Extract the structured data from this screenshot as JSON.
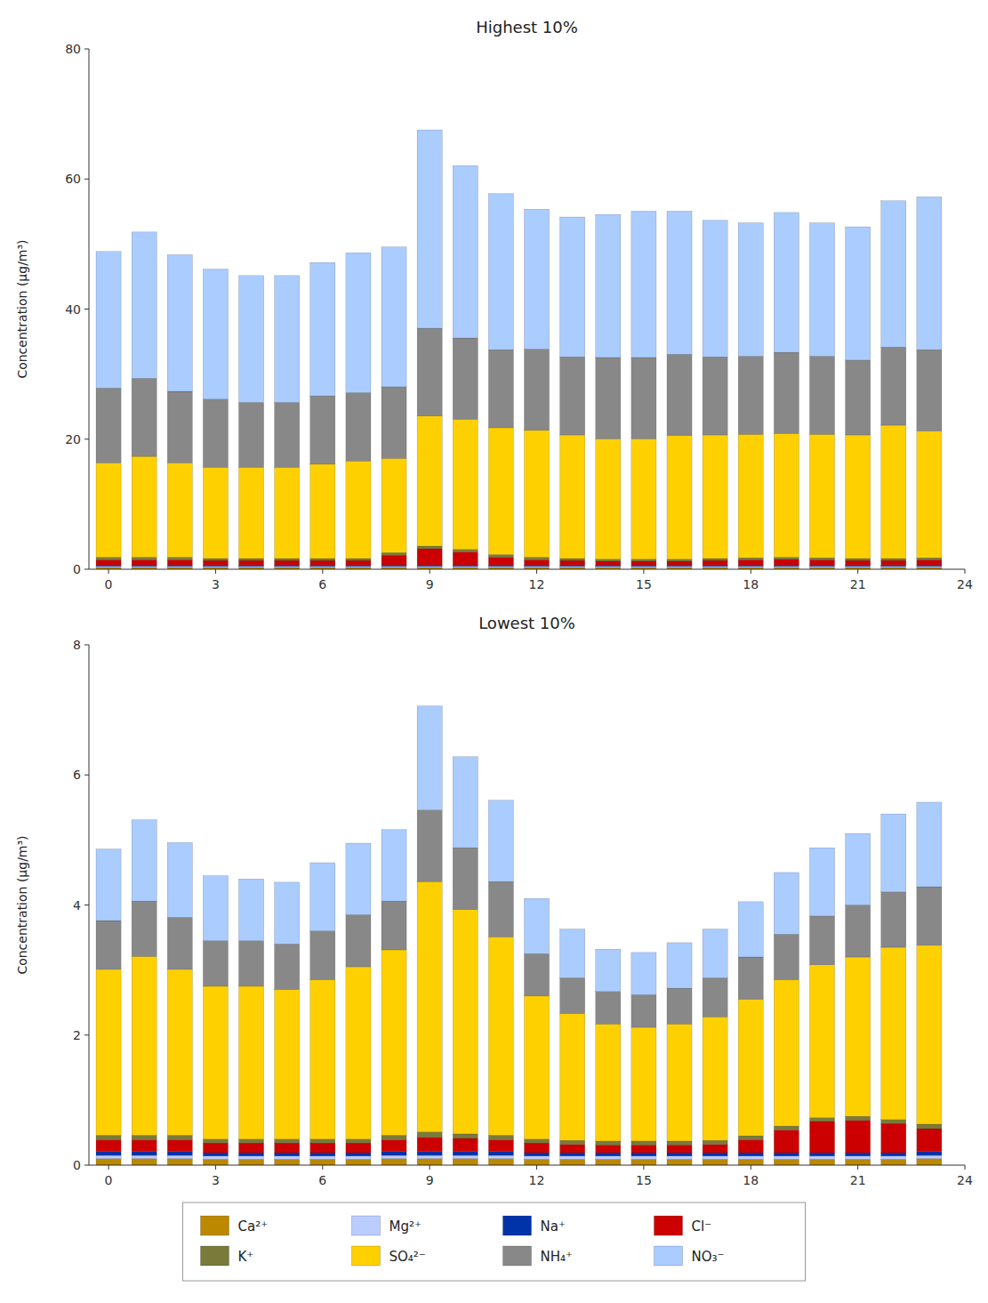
{
  "chart_data": [
    {
      "type": "bar",
      "stacked": true,
      "grid": false,
      "legend": "bottom",
      "title": "Highest 10%",
      "ylabel": "Concentration (μg/m³)",
      "x": [
        0,
        1,
        2,
        3,
        4,
        5,
        6,
        7,
        8,
        9,
        10,
        11,
        12,
        13,
        14,
        15,
        16,
        17,
        18,
        19,
        20,
        21,
        22,
        23
      ],
      "xlim": [
        -0.55,
        24
      ],
      "xticks": [
        0,
        3,
        6,
        9,
        12,
        15,
        18,
        21,
        24
      ],
      "ylim": [
        0,
        80
      ],
      "yticks": [
        0,
        20,
        40,
        60,
        80
      ],
      "series": [
        {
          "name": "Ca²⁺",
          "color": "#BB8800",
          "values": [
            0.3,
            0.3,
            0.3,
            0.3,
            0.3,
            0.3,
            0.3,
            0.3,
            0.3,
            0.3,
            0.3,
            0.3,
            0.3,
            0.3,
            0.3,
            0.3,
            0.3,
            0.3,
            0.3,
            0.3,
            0.3,
            0.3,
            0.3,
            0.3
          ]
        },
        {
          "name": "Mg²⁺",
          "color": "#BBCCFF",
          "values": [
            0.15,
            0.15,
            0.15,
            0.15,
            0.15,
            0.15,
            0.15,
            0.15,
            0.15,
            0.15,
            0.15,
            0.15,
            0.15,
            0.15,
            0.15,
            0.15,
            0.15,
            0.15,
            0.15,
            0.15,
            0.15,
            0.15,
            0.15,
            0.15
          ]
        },
        {
          "name": "Na⁺",
          "color": "#0033AA",
          "values": [
            0.2,
            0.2,
            0.2,
            0.2,
            0.2,
            0.2,
            0.2,
            0.2,
            0.2,
            0.2,
            0.2,
            0.2,
            0.2,
            0.2,
            0.2,
            0.2,
            0.2,
            0.2,
            0.2,
            0.2,
            0.2,
            0.2,
            0.2,
            0.2
          ]
        },
        {
          "name": "Cl⁻",
          "color": "#CC0000",
          "values": [
            0.8,
            0.8,
            0.8,
            0.7,
            0.7,
            0.7,
            0.7,
            0.7,
            1.5,
            2.5,
            2.0,
            1.2,
            0.8,
            0.7,
            0.6,
            0.6,
            0.6,
            0.7,
            0.8,
            0.9,
            0.8,
            0.7,
            0.7,
            0.8
          ]
        },
        {
          "name": "K⁺",
          "color": "#7A7A3A",
          "values": [
            0.4,
            0.4,
            0.4,
            0.3,
            0.3,
            0.3,
            0.3,
            0.3,
            0.4,
            0.4,
            0.4,
            0.4,
            0.4,
            0.3,
            0.3,
            0.3,
            0.3,
            0.3,
            0.3,
            0.3,
            0.3,
            0.3,
            0.3,
            0.3
          ]
        },
        {
          "name": "SO₄²⁻",
          "color": "#FFD000",
          "values": [
            14.5,
            15.5,
            14.5,
            14.0,
            14.0,
            14.0,
            14.5,
            15.0,
            14.5,
            20.0,
            20.0,
            19.5,
            19.5,
            19.0,
            18.5,
            18.5,
            19.0,
            19.0,
            19.0,
            19.0,
            19.0,
            19.0,
            20.5,
            19.5
          ]
        },
        {
          "name": "NH₄⁺",
          "color": "#888888",
          "values": [
            11.5,
            12.0,
            11.0,
            10.5,
            10.0,
            10.0,
            10.5,
            10.5,
            11.0,
            13.5,
            12.5,
            12.0,
            12.5,
            12.0,
            12.5,
            12.5,
            12.5,
            12.0,
            12.0,
            12.5,
            12.0,
            11.5,
            12.0,
            12.5
          ]
        },
        {
          "name": "NO₃⁻",
          "color": "#AACCFF",
          "values": [
            21.0,
            22.5,
            21.0,
            20.0,
            19.5,
            19.5,
            20.5,
            21.5,
            21.5,
            30.5,
            26.5,
            24.0,
            21.5,
            21.5,
            22.0,
            22.5,
            22.0,
            21.0,
            20.5,
            21.5,
            20.5,
            20.5,
            22.5,
            23.5
          ]
        }
      ]
    },
    {
      "type": "bar",
      "stacked": true,
      "grid": false,
      "title": "Lowest 10%",
      "ylabel": "Concentration (μg/m³)",
      "x": [
        0,
        1,
        2,
        3,
        4,
        5,
        6,
        7,
        8,
        9,
        10,
        11,
        12,
        13,
        14,
        15,
        16,
        17,
        18,
        19,
        20,
        21,
        22,
        23
      ],
      "xlim": [
        -0.55,
        24
      ],
      "xticks": [
        0,
        3,
        6,
        9,
        12,
        15,
        18,
        21,
        24
      ],
      "ylim": [
        0,
        8
      ],
      "yticks": [
        0,
        2,
        4,
        6,
        8
      ],
      "series": [
        {
          "name": "Ca²⁺",
          "color": "#BB8800",
          "values": [
            0.1,
            0.1,
            0.1,
            0.09,
            0.09,
            0.09,
            0.09,
            0.09,
            0.1,
            0.1,
            0.1,
            0.1,
            0.09,
            0.09,
            0.09,
            0.09,
            0.09,
            0.09,
            0.09,
            0.09,
            0.09,
            0.09,
            0.09,
            0.1
          ]
        },
        {
          "name": "Mg²⁺",
          "color": "#BBCCFF",
          "values": [
            0.05,
            0.05,
            0.05,
            0.05,
            0.05,
            0.05,
            0.05,
            0.05,
            0.05,
            0.05,
            0.05,
            0.05,
            0.05,
            0.05,
            0.05,
            0.05,
            0.05,
            0.05,
            0.05,
            0.05,
            0.05,
            0.05,
            0.05,
            0.05
          ]
        },
        {
          "name": "Na⁺",
          "color": "#0033AA",
          "values": [
            0.06,
            0.06,
            0.06,
            0.05,
            0.05,
            0.05,
            0.05,
            0.05,
            0.06,
            0.06,
            0.06,
            0.06,
            0.05,
            0.05,
            0.05,
            0.05,
            0.05,
            0.05,
            0.05,
            0.05,
            0.05,
            0.05,
            0.05,
            0.06
          ]
        },
        {
          "name": "Cl⁻",
          "color": "#CC0000",
          "values": [
            0.18,
            0.18,
            0.18,
            0.15,
            0.15,
            0.15,
            0.15,
            0.15,
            0.18,
            0.22,
            0.2,
            0.18,
            0.15,
            0.13,
            0.12,
            0.12,
            0.12,
            0.13,
            0.2,
            0.35,
            0.48,
            0.5,
            0.45,
            0.35
          ]
        },
        {
          "name": "K⁺",
          "color": "#7A7A3A",
          "values": [
            0.07,
            0.07,
            0.07,
            0.06,
            0.06,
            0.06,
            0.06,
            0.06,
            0.07,
            0.08,
            0.07,
            0.07,
            0.06,
            0.06,
            0.06,
            0.06,
            0.06,
            0.06,
            0.06,
            0.06,
            0.06,
            0.06,
            0.06,
            0.07
          ]
        },
        {
          "name": "SO₄²⁻",
          "color": "#FFD000",
          "values": [
            2.55,
            2.75,
            2.55,
            2.35,
            2.35,
            2.3,
            2.45,
            2.65,
            2.85,
            3.85,
            3.45,
            3.05,
            2.2,
            1.95,
            1.8,
            1.75,
            1.8,
            1.9,
            2.1,
            2.25,
            2.35,
            2.45,
            2.65,
            2.75
          ]
        },
        {
          "name": "NH₄⁺",
          "color": "#888888",
          "values": [
            0.75,
            0.85,
            0.8,
            0.7,
            0.7,
            0.7,
            0.75,
            0.8,
            0.75,
            1.1,
            0.95,
            0.85,
            0.65,
            0.55,
            0.5,
            0.5,
            0.55,
            0.6,
            0.65,
            0.7,
            0.75,
            0.8,
            0.85,
            0.9
          ]
        },
        {
          "name": "NO₃⁻",
          "color": "#AACCFF",
          "values": [
            1.1,
            1.25,
            1.15,
            1.0,
            0.95,
            0.95,
            1.05,
            1.1,
            1.1,
            1.6,
            1.4,
            1.25,
            0.85,
            0.75,
            0.65,
            0.65,
            0.7,
            0.75,
            0.85,
            0.95,
            1.05,
            1.1,
            1.2,
            1.3
          ]
        }
      ]
    }
  ]
}
